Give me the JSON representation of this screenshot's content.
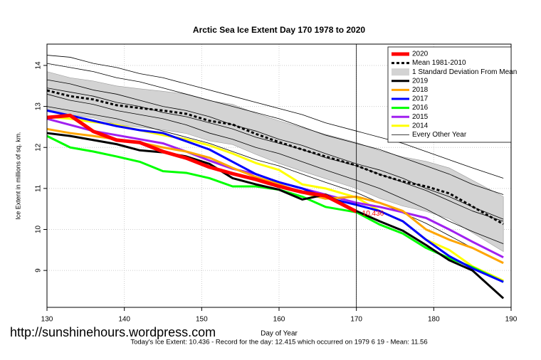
{
  "chart_data": {
    "type": "line",
    "title": "Arctic Sea Ice Extent Day 170 1978 to 2020",
    "xlabel": "Day of Year",
    "ylabel": "Ice Extent in millions of sq. km.",
    "x": [
      130,
      133,
      136,
      139,
      142,
      145,
      148,
      151,
      154,
      157,
      160,
      163,
      166,
      170,
      173,
      176,
      179,
      182,
      185,
      189
    ],
    "xlim": [
      130,
      190
    ],
    "xticks": [
      130,
      140,
      150,
      160,
      170,
      180,
      190
    ],
    "ylim": [
      8.1,
      14.52
    ],
    "yticks": [
      9,
      10,
      11,
      12,
      13,
      14
    ],
    "grid": true,
    "legend": "top-right",
    "series": [
      {
        "name": "2020",
        "color": "#ff0000",
        "style": "thick",
        "values": [
          12.73,
          12.78,
          12.39,
          12.18,
          12.12,
          11.9,
          11.74,
          11.52,
          11.36,
          11.22,
          11.05,
          10.91,
          10.82,
          10.436,
          null,
          null,
          null,
          null,
          null,
          null
        ]
      },
      {
        "name": "Mean 1981-2010",
        "color": "#000000",
        "style": "dashed",
        "values": [
          13.39,
          13.25,
          13.17,
          13.03,
          12.96,
          12.9,
          12.82,
          12.65,
          12.56,
          12.33,
          12.13,
          11.95,
          11.78,
          11.56,
          11.34,
          11.17,
          11.05,
          10.88,
          10.56,
          10.13
        ]
      },
      {
        "name": "1 Standard Deviation From Mean",
        "color": "#d3d3d3",
        "style": "band",
        "upper": [
          13.85,
          13.7,
          13.62,
          13.5,
          13.43,
          13.37,
          13.3,
          13.14,
          13.05,
          12.83,
          12.65,
          12.48,
          12.32,
          12.12,
          11.92,
          11.77,
          11.66,
          11.5,
          11.2,
          10.8
        ],
        "lower": [
          12.93,
          12.8,
          12.72,
          12.56,
          12.49,
          12.43,
          12.34,
          12.16,
          12.07,
          11.83,
          11.61,
          11.42,
          11.24,
          11.0,
          10.76,
          10.57,
          10.44,
          10.26,
          9.92,
          9.46
        ]
      },
      {
        "name": "2019",
        "color": "#000000",
        "style": "normal",
        "values": [
          12.35,
          12.28,
          12.18,
          12.08,
          11.93,
          11.88,
          11.78,
          11.6,
          11.25,
          11.1,
          10.97,
          10.73,
          10.85,
          10.45,
          10.2,
          9.97,
          9.62,
          9.25,
          9.0,
          8.32
        ]
      },
      {
        "name": "2018",
        "color": "#ffa500",
        "style": "normal",
        "values": [
          12.45,
          12.35,
          12.28,
          12.2,
          12.12,
          12.0,
          11.9,
          11.75,
          11.5,
          11.28,
          11.1,
          10.9,
          10.75,
          10.8,
          10.65,
          10.45,
          10.0,
          9.75,
          9.55,
          9.18
        ]
      },
      {
        "name": "2017",
        "color": "#0000ff",
        "style": "normal",
        "values": [
          12.9,
          12.78,
          12.65,
          12.52,
          12.42,
          12.35,
          12.15,
          11.95,
          11.65,
          11.35,
          11.15,
          11.0,
          10.78,
          10.6,
          10.45,
          10.2,
          9.75,
          9.35,
          9.05,
          8.72
        ]
      },
      {
        "name": "2016",
        "color": "#00ff00",
        "style": "normal",
        "values": [
          12.28,
          12.0,
          11.9,
          11.78,
          11.65,
          11.42,
          11.38,
          11.25,
          11.05,
          11.05,
          10.97,
          10.8,
          10.55,
          10.42,
          10.12,
          9.9,
          9.55,
          9.3,
          9.08,
          8.72
        ]
      },
      {
        "name": "2015",
        "color": "#a020f0",
        "style": "normal",
        "values": [
          12.7,
          12.55,
          12.4,
          12.3,
          12.2,
          12.1,
          11.9,
          11.68,
          11.48,
          11.35,
          11.15,
          11.0,
          10.85,
          10.65,
          10.55,
          10.42,
          10.28,
          10.0,
          9.7,
          9.32
        ]
      },
      {
        "name": "2014",
        "color": "#ffff00",
        "style": "normal",
        "values": [
          12.75,
          12.7,
          12.62,
          12.55,
          12.42,
          12.3,
          12.2,
          12.05,
          11.85,
          11.62,
          11.45,
          11.1,
          11.0,
          10.78,
          10.45,
          10.2,
          9.75,
          9.5,
          9.1,
          8.75
        ]
      },
      {
        "name": "Every Other Year",
        "color": "#000000",
        "style": "thin",
        "lines": [
          [
            14.25,
            14.2,
            14.05,
            13.95,
            13.8,
            13.7,
            13.55,
            13.4,
            13.25,
            13.1,
            12.95,
            12.8,
            12.6,
            12.4,
            12.25,
            12.1,
            11.9,
            11.7,
            11.5,
            11.25
          ],
          [
            14.05,
            13.95,
            13.85,
            13.7,
            13.6,
            13.45,
            13.3,
            13.15,
            13.0,
            12.85,
            12.7,
            12.5,
            12.3,
            12.1,
            11.95,
            11.75,
            11.55,
            11.35,
            11.1,
            10.85
          ],
          [
            13.65,
            13.55,
            13.4,
            13.3,
            13.15,
            13.0,
            12.9,
            12.75,
            12.55,
            12.4,
            12.2,
            12.05,
            11.85,
            11.6,
            11.45,
            11.25,
            11.0,
            10.8,
            10.55,
            10.25
          ],
          [
            13.3,
            13.15,
            13.05,
            12.9,
            12.8,
            12.7,
            12.55,
            12.35,
            12.2,
            12.0,
            11.85,
            11.65,
            11.45,
            11.2,
            11.0,
            10.75,
            10.5,
            10.2,
            9.95,
            9.65
          ],
          [
            13.0,
            12.9,
            12.8,
            12.7,
            12.55,
            12.4,
            12.25,
            12.1,
            11.9,
            11.7,
            11.55,
            11.35,
            11.15,
            10.9,
            10.65,
            10.4,
            10.15,
            9.85,
            9.55,
            9.2
          ],
          [
            13.45,
            13.35,
            13.25,
            13.1,
            13.0,
            12.85,
            12.75,
            12.6,
            12.45,
            12.25,
            12.1,
            11.95,
            11.75,
            11.55,
            11.35,
            11.15,
            10.95,
            10.7,
            10.45,
            10.2
          ]
        ]
      }
    ],
    "annotation": "10.436",
    "footnote": "Today's Ice Extent: 10.436  - Record for the day: 12.415 which occurred on 1979 6 19  - Mean: 11.56",
    "watermark": "http://sunshinehours.wordpress.com"
  }
}
